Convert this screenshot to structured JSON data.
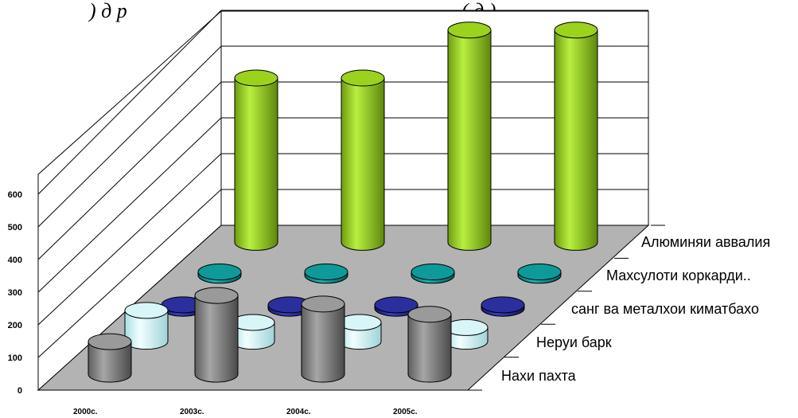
{
  "chart_data": {
    "type": "bar",
    "style": "3d-cylinder",
    "title_fragment_left": ") д р",
    "title_fragment_right": "(           д                 )",
    "categories": [
      "2000с.",
      "2003с.",
      "2004с.",
      "2005с."
    ],
    "y_ticks": [
      "0",
      "100",
      "200",
      "300",
      "400",
      "500",
      "600"
    ],
    "ylim": [
      0,
      600
    ],
    "grid": true,
    "series": [
      {
        "name": "Нахи пахта",
        "color": "#9a9a9a",
        "values": [
          95,
          230,
          205,
          175
        ]
      },
      {
        "name": "Неруи барк",
        "color": "#d8f6f8",
        "values": [
          90,
          55,
          55,
          40
        ]
      },
      {
        "name": "санг ва металхои киматбахо",
        "color": "#2b2f9e",
        "values": [
          10,
          10,
          10,
          10
        ]
      },
      {
        "name": "Махсулоти коркарди..",
        "color": "#0f9a9a",
        "values": [
          10,
          10,
          10,
          10
        ]
      },
      {
        "name": "Алюминяи аввалия",
        "color": "#9ad21c",
        "values": [
          480,
          480,
          620,
          620
        ]
      }
    ]
  }
}
